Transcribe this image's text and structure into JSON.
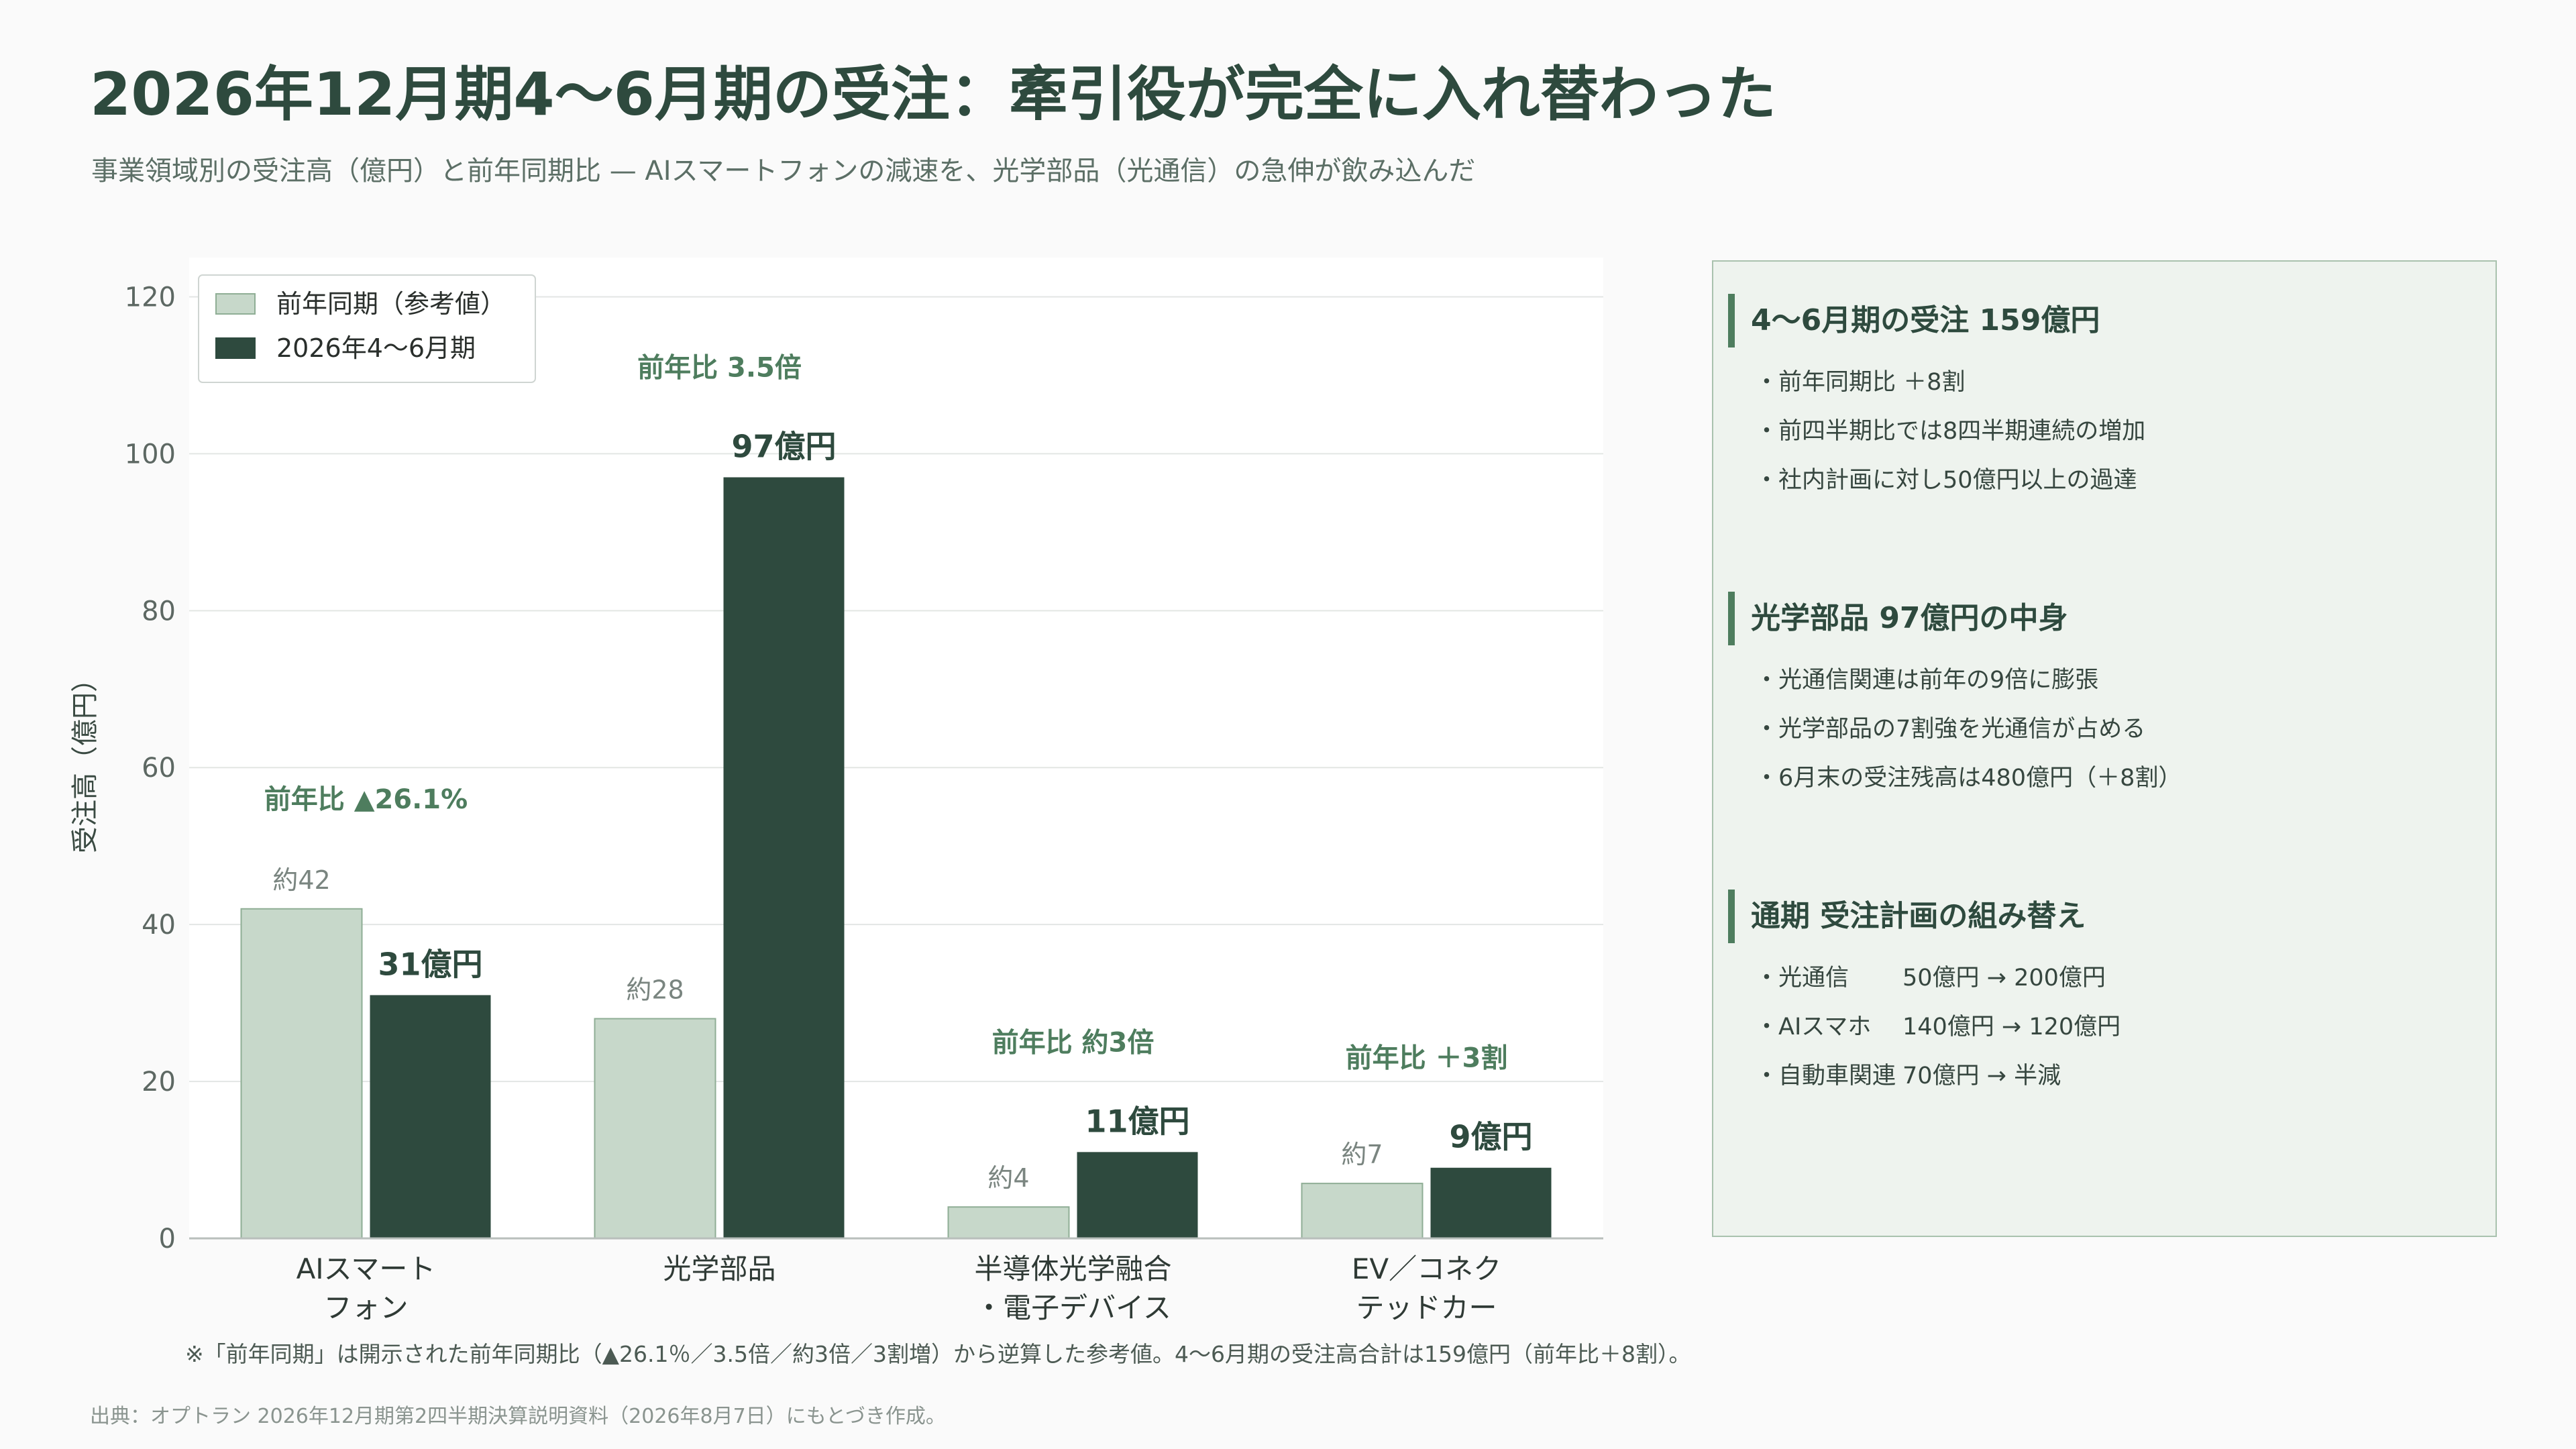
{
  "title": "2026年12月期4〜6月期の受注：牽引役が完全に入れ替わった",
  "subtitle": "事業領域別の受注高（億円）と前年同期比 — AIスマートフォンの減速を、光学部品（光通信）の急伸が飲み込んだ",
  "chart_data": {
    "type": "bar",
    "categories": [
      [
        "AIスマート",
        "フォン"
      ],
      [
        "光学部品"
      ],
      [
        "半導体光学融合",
        "・電子デバイス"
      ],
      [
        "EV／コネク",
        "テッドカー"
      ]
    ],
    "series": [
      {
        "name": "前年同期（参考値）",
        "values": [
          42,
          28,
          4,
          7
        ],
        "labels": [
          "約42",
          "約28",
          "約4",
          "約7"
        ],
        "color": "#c7d8ca"
      },
      {
        "name": "2026年4〜6月期",
        "values": [
          31,
          97,
          11,
          9
        ],
        "labels": [
          "31億円",
          "97億円",
          "11億円",
          "9億円"
        ],
        "color": "#2e4a3e"
      }
    ],
    "growth_labels": [
      "前年比 ▲26.1%",
      "前年比 3.5倍",
      "前年比 約3倍",
      "前年比 ＋3割"
    ],
    "ylabel": "受注高（億円）",
    "xlabel": "",
    "ylim": [
      0,
      125
    ],
    "yticks": [
      0,
      20,
      40,
      60,
      80,
      100,
      120
    ],
    "grid": true,
    "legend": "top-left"
  },
  "panel": {
    "sections": [
      {
        "heading": "4〜6月期の受注 159億円",
        "items": [
          "・前年同期比 ＋8割",
          "・前四半期比では8四半期連続の増加",
          "・社内計画に対し50億円以上の過達"
        ]
      },
      {
        "heading": "光学部品 97億円の中身",
        "items": [
          "・光通信関連は前年の9倍に膨張",
          "・光学部品の7割強を光通信が占める",
          "・6月末の受注残高は480億円（＋8割）"
        ]
      },
      {
        "heading": "通期 受注計画の組み替え",
        "plan": [
          {
            "name": "・光通信",
            "change": "50億円 → 200億円"
          },
          {
            "name": "・AIスマホ",
            "change": "140億円 → 120億円"
          },
          {
            "name": "・自動車関連",
            "change": "70億円 → 半減"
          }
        ]
      }
    ]
  },
  "footnote": "※「前年同期」は開示された前年同期比（▲26.1％／3.5倍／約3倍／3割増）から逆算した参考値。4〜6月期の受注高合計は159億円（前年比＋8割）。",
  "source": "出典：オプトラン 2026年12月期第2四半期決算説明資料（2026年8月7日）にもとづき作成。"
}
